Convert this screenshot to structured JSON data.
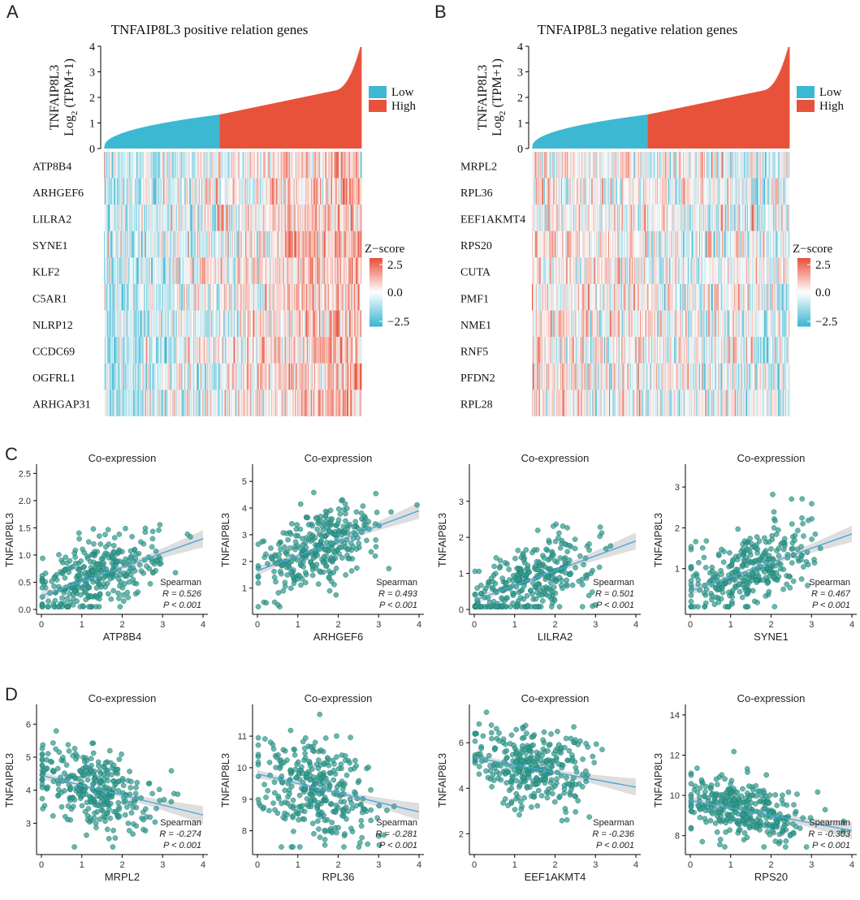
{
  "figure": {
    "colors": {
      "low": "#3db8d2",
      "high": "#e8523b",
      "point_fill": "#2e9b8f",
      "point_stroke": "#1f6f66",
      "fit_line": "#4aa8d8",
      "ci_band": "#c8c8c8",
      "heat_pos": "#e8523b",
      "heat_neg": "#3db8d2",
      "heat_mid": "#ffffff"
    }
  },
  "chart_data": [
    {
      "id": "A",
      "type": "heatmap",
      "panel_label": "A",
      "title": "TNFAIP8L3 positive relation genes",
      "ylabel_line1": "TNFAIP8L3",
      "ylabel_line2": "Log2 (TPM+1)",
      "ylabel_prefix": "Log",
      "ylabel_sub": "2",
      "ylabel_suffix": " (TPM+1)",
      "ylim": [
        0,
        4
      ],
      "yticks": [
        "0",
        "1",
        "2",
        "3",
        "4"
      ],
      "sample_count": 360,
      "low_high_split": 0.45,
      "legend_groups": [
        "Low",
        "High"
      ],
      "zscore_title": "Z−score",
      "zscore_ticks": [
        "2.5",
        "0.0",
        "−2.5"
      ],
      "trend": "positive",
      "genes": [
        "ATP8B4",
        "ARHGEF6",
        "LILRA2",
        "SYNE1",
        "KLF2",
        "C5AR1",
        "NLRP12",
        "CCDC69",
        "OGFRL1",
        "ARHGAP31"
      ]
    },
    {
      "id": "B",
      "type": "heatmap",
      "panel_label": "B",
      "title": "TNFAIP8L3 negative relation genes",
      "ylabel_line1": "TNFAIP8L3",
      "ylabel_line2": "Log2 (TPM+1)",
      "ylabel_prefix": "Log",
      "ylabel_sub": "2",
      "ylabel_suffix": " (TPM+1)",
      "ylim": [
        0,
        4
      ],
      "yticks": [
        "0",
        "1",
        "2",
        "3",
        "4"
      ],
      "sample_count": 360,
      "low_high_split": 0.45,
      "legend_groups": [
        "Low",
        "High"
      ],
      "zscore_title": "Z−score",
      "zscore_ticks": [
        "2.5",
        "0.0",
        "−2.5"
      ],
      "trend": "negative",
      "genes": [
        "MRPL2",
        "RPL36",
        "EEF1AKMT4",
        "RPS20",
        "CUTA",
        "PMF1",
        "NME1",
        "RNF5",
        "PFDN2",
        "RPL28"
      ]
    },
    {
      "id": "C1",
      "type": "scatter",
      "row_label": "C",
      "title": "Co-expression",
      "xlabel": "ATP8B4",
      "ylabel": "TNFAIP8L3",
      "xlim": [
        0,
        4
      ],
      "xticks": [
        0,
        1,
        2,
        3,
        4
      ],
      "ylim": [
        0,
        2.55
      ],
      "yticks": [
        0.0,
        0.5,
        1.0,
        1.5,
        2.0,
        2.5
      ],
      "ytick_labels": [
        "0.0",
        "0.5",
        "1.0",
        "1.5",
        "2.0",
        "2.5"
      ],
      "fit": {
        "x0": 0,
        "y0": 0.25,
        "x1": 4,
        "y1": 1.3
      },
      "cloud": {
        "x_center": 1.4,
        "x_spread": 0.75,
        "y_spread": 0.33,
        "n": 330
      },
      "stats": {
        "method": "Spearman",
        "R_label": "R = 0.526",
        "P_label": "P < 0.001"
      }
    },
    {
      "id": "C2",
      "type": "scatter",
      "title": "Co-expression",
      "xlabel": "ARHGEF6",
      "ylabel": "TNFAIP8L3",
      "xlim": [
        0,
        4
      ],
      "xticks": [
        0,
        1,
        2,
        3,
        4
      ],
      "ylim": [
        0.2,
        5.4
      ],
      "yticks": [
        1,
        2,
        3,
        4,
        5
      ],
      "ytick_labels": [
        "1",
        "2",
        "3",
        "4",
        "5"
      ],
      "fit": {
        "x0": 0,
        "y0": 1.65,
        "x1": 4,
        "y1": 3.9
      },
      "cloud": {
        "x_center": 1.5,
        "x_spread": 0.75,
        "y_spread": 0.7,
        "n": 330
      },
      "stats": {
        "method": "Spearman",
        "R_label": "R = 0.493",
        "P_label": "P < 0.001"
      }
    },
    {
      "id": "C3",
      "type": "scatter",
      "title": "Co-expression",
      "xlabel": "LILRA2",
      "ylabel": "TNFAIP8L3",
      "xlim": [
        0,
        4
      ],
      "xticks": [
        0,
        1,
        2,
        3,
        4
      ],
      "ylim": [
        0,
        3.85
      ],
      "yticks": [
        0,
        1,
        2,
        3
      ],
      "ytick_labels": [
        "0",
        "1",
        "2",
        "3"
      ],
      "fit": {
        "x0": 0,
        "y0": 0.25,
        "x1": 4,
        "y1": 1.9
      },
      "cloud": {
        "x_center": 1.4,
        "x_spread": 0.8,
        "y_spread": 0.5,
        "n": 330
      },
      "stats": {
        "method": "Spearman",
        "R_label": "R = 0.501",
        "P_label": "P < 0.001"
      }
    },
    {
      "id": "C4",
      "type": "scatter",
      "title": "Co-expression",
      "xlabel": "SYNE1",
      "ylabel": "TNFAIP8L3",
      "xlim": [
        0,
        4
      ],
      "xticks": [
        0,
        1,
        2,
        3,
        4
      ],
      "ylim": [
        0,
        3.4
      ],
      "yticks": [
        1,
        2,
        3
      ],
      "ytick_labels": [
        "1",
        "2",
        "3"
      ],
      "fit": {
        "x0": 0,
        "y0": 0.45,
        "x1": 4,
        "y1": 1.85
      },
      "cloud": {
        "x_center": 1.5,
        "x_spread": 0.75,
        "y_spread": 0.5,
        "n": 330
      },
      "stats": {
        "method": "Spearman",
        "R_label": "R = 0.467",
        "P_label": "P < 0.001"
      }
    },
    {
      "id": "D1",
      "type": "scatter",
      "row_label": "D",
      "title": "Co-expression",
      "xlabel": "MRPL2",
      "ylabel": "TNFAIP8L3",
      "xlim": [
        0,
        4
      ],
      "xticks": [
        0,
        1,
        2,
        3,
        4
      ],
      "ylim": [
        2.2,
        6.4
      ],
      "yticks": [
        3,
        4,
        5,
        6
      ],
      "ytick_labels": [
        "3",
        "4",
        "5",
        "6"
      ],
      "fit": {
        "x0": 0,
        "y0": 4.45,
        "x1": 4,
        "y1": 3.25
      },
      "cloud": {
        "x_center": 1.3,
        "x_spread": 0.7,
        "y_spread": 0.6,
        "n": 330
      },
      "stats": {
        "method": "Spearman",
        "R_label": "R = -0.274",
        "P_label": "P < 0.001"
      }
    },
    {
      "id": "D2",
      "type": "scatter",
      "title": "Co-expression",
      "xlabel": "RPL36",
      "ylabel": "TNFAIP8L3",
      "xlim": [
        0,
        4
      ],
      "xticks": [
        0,
        1,
        2,
        3,
        4
      ],
      "ylim": [
        7.4,
        11.8
      ],
      "yticks": [
        8,
        9,
        10,
        11
      ],
      "ytick_labels": [
        "8",
        "9",
        "10",
        "11"
      ],
      "fit": {
        "x0": 0,
        "y0": 9.8,
        "x1": 4,
        "y1": 8.6
      },
      "cloud": {
        "x_center": 1.4,
        "x_spread": 0.75,
        "y_spread": 0.8,
        "n": 330
      },
      "stats": {
        "method": "Spearman",
        "R_label": "R = -0.281",
        "P_label": "P < 0.001"
      }
    },
    {
      "id": "D3",
      "type": "scatter",
      "title": "Co-expression",
      "xlabel": "EEF1AKMT4",
      "ylabel": "TNFAIP8L3",
      "xlim": [
        0,
        4
      ],
      "xticks": [
        0,
        1,
        2,
        3,
        4
      ],
      "ylim": [
        1.3,
        7.4
      ],
      "yticks": [
        2,
        4,
        6
      ],
      "ytick_labels": [
        "2",
        "4",
        "6"
      ],
      "fit": {
        "x0": 0,
        "y0": 5.35,
        "x1": 4,
        "y1": 4.05
      },
      "cloud": {
        "x_center": 1.4,
        "x_spread": 0.75,
        "y_spread": 0.9,
        "n": 330
      },
      "stats": {
        "method": "Spearman",
        "R_label": "R = -0.236",
        "P_label": "P < 0.001"
      }
    },
    {
      "id": "D4",
      "type": "scatter",
      "title": "Co-expression",
      "xlabel": "RPS20",
      "ylabel": "TNFAIP8L3",
      "xlim": [
        0,
        4
      ],
      "xticks": [
        0,
        1,
        2,
        3,
        4
      ],
      "ylim": [
        7.3,
        14.2
      ],
      "yticks": [
        8,
        10,
        12,
        14
      ],
      "ytick_labels": [
        "8",
        "10",
        "12",
        "14"
      ],
      "fit": {
        "x0": 0,
        "y0": 9.75,
        "x1": 4,
        "y1": 8.25
      },
      "cloud": {
        "x_center": 1.4,
        "x_spread": 0.75,
        "y_spread": 0.75,
        "n": 330
      },
      "stats": {
        "method": "Spearman",
        "R_label": "R = -0.303",
        "P_label": "P < 0.001"
      }
    }
  ]
}
